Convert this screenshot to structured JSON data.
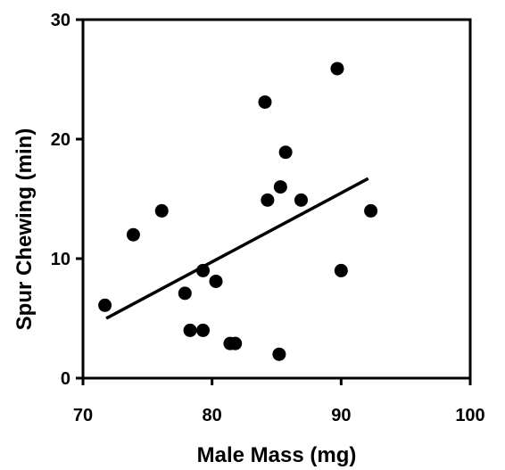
{
  "chart_data": {
    "type": "scatter",
    "title": "",
    "xlabel": "Male Mass (mg)",
    "ylabel": "Spur Chewing (min)",
    "xlim": [
      70,
      100
    ],
    "ylim": [
      0,
      30
    ],
    "xticks": [
      70,
      80,
      90,
      100
    ],
    "yticks": [
      0,
      10,
      20,
      30
    ],
    "grid": false,
    "legend": "none",
    "marker_color": "#000000",
    "line_color": "#000000",
    "points": [
      {
        "x": 71.7,
        "y": 6.1
      },
      {
        "x": 73.9,
        "y": 12.0
      },
      {
        "x": 76.1,
        "y": 14.0
      },
      {
        "x": 77.9,
        "y": 7.1
      },
      {
        "x": 78.3,
        "y": 4.0
      },
      {
        "x": 79.3,
        "y": 9.0
      },
      {
        "x": 79.3,
        "y": 4.0
      },
      {
        "x": 80.3,
        "y": 8.1
      },
      {
        "x": 81.4,
        "y": 2.9
      },
      {
        "x": 81.8,
        "y": 2.9
      },
      {
        "x": 84.1,
        "y": 23.1
      },
      {
        "x": 84.3,
        "y": 14.9
      },
      {
        "x": 85.2,
        "y": 2.0
      },
      {
        "x": 85.3,
        "y": 16.0
      },
      {
        "x": 85.7,
        "y": 18.9
      },
      {
        "x": 86.9,
        "y": 14.9
      },
      {
        "x": 89.7,
        "y": 25.9
      },
      {
        "x": 90.0,
        "y": 9.0
      },
      {
        "x": 92.3,
        "y": 14.0
      }
    ],
    "trendline": {
      "x": [
        71.8,
        92.1
      ],
      "y": [
        5.0,
        16.7
      ]
    }
  }
}
